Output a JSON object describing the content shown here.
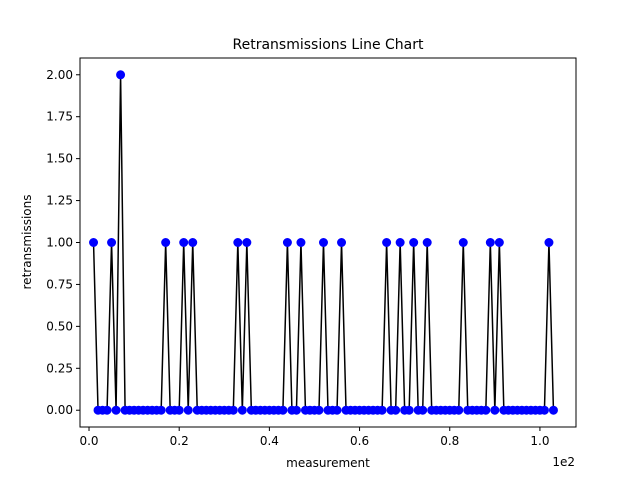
{
  "chart_data": {
    "type": "line",
    "title": "Retransmissions Line Chart",
    "xlabel": "measurement",
    "ylabel": "retransmissions",
    "x_scale_label": "1e2",
    "xlim": [
      -2,
      108
    ],
    "ylim": [
      -0.1,
      2.1
    ],
    "x_ticks": [
      0,
      20,
      40,
      60,
      80,
      100
    ],
    "x_tick_labels": [
      "0.0",
      "0.2",
      "0.4",
      "0.6",
      "0.8",
      "1.0"
    ],
    "y_ticks": [
      0.0,
      0.25,
      0.5,
      0.75,
      1.0,
      1.25,
      1.5,
      1.75,
      2.0
    ],
    "y_tick_labels": [
      "0.00",
      "0.25",
      "0.50",
      "0.75",
      "1.00",
      "1.25",
      "1.50",
      "1.75",
      "2.00"
    ],
    "grid": false,
    "line_color": "#000000",
    "marker_color": "#0000ff",
    "series": [
      {
        "x": [
          1,
          2,
          3,
          4,
          5,
          6,
          7,
          8,
          9,
          10,
          11,
          12,
          13,
          14,
          15,
          16,
          17,
          18,
          19,
          20,
          21,
          22,
          23,
          24,
          25,
          26,
          27,
          28,
          29,
          30,
          31,
          32,
          33,
          34,
          35,
          36,
          37,
          38,
          39,
          40,
          41,
          42,
          43,
          44,
          45,
          46,
          47,
          48,
          49,
          50,
          51,
          52,
          53,
          54,
          55,
          56,
          57,
          58,
          59,
          60,
          61,
          62,
          63,
          64,
          65,
          66,
          67,
          68,
          69,
          70,
          71,
          72,
          73,
          74,
          75,
          76,
          77,
          78,
          79,
          80,
          81,
          82,
          83,
          84,
          85,
          86,
          87,
          88,
          89,
          90,
          91,
          92,
          93,
          94,
          95,
          96,
          97,
          98,
          99,
          100,
          101,
          102,
          103
        ],
        "values": [
          1,
          0,
          0,
          0,
          1,
          0,
          2,
          0,
          0,
          0,
          0,
          0,
          0,
          0,
          0,
          0,
          1,
          0,
          0,
          0,
          1,
          0,
          1,
          0,
          0,
          0,
          0,
          0,
          0,
          0,
          0,
          0,
          1,
          0,
          1,
          0,
          0,
          0,
          0,
          0,
          0,
          0,
          0,
          1,
          0,
          0,
          1,
          0,
          0,
          0,
          0,
          1,
          0,
          0,
          0,
          1,
          0,
          0,
          0,
          0,
          0,
          0,
          0,
          0,
          0,
          1,
          0,
          0,
          1,
          0,
          0,
          1,
          0,
          0,
          1,
          0,
          0,
          0,
          0,
          0,
          0,
          0,
          1,
          0,
          0,
          0,
          0,
          0,
          1,
          0,
          1,
          0,
          0,
          0,
          0,
          0,
          0,
          0,
          0,
          0,
          0,
          1,
          0
        ]
      }
    ]
  }
}
